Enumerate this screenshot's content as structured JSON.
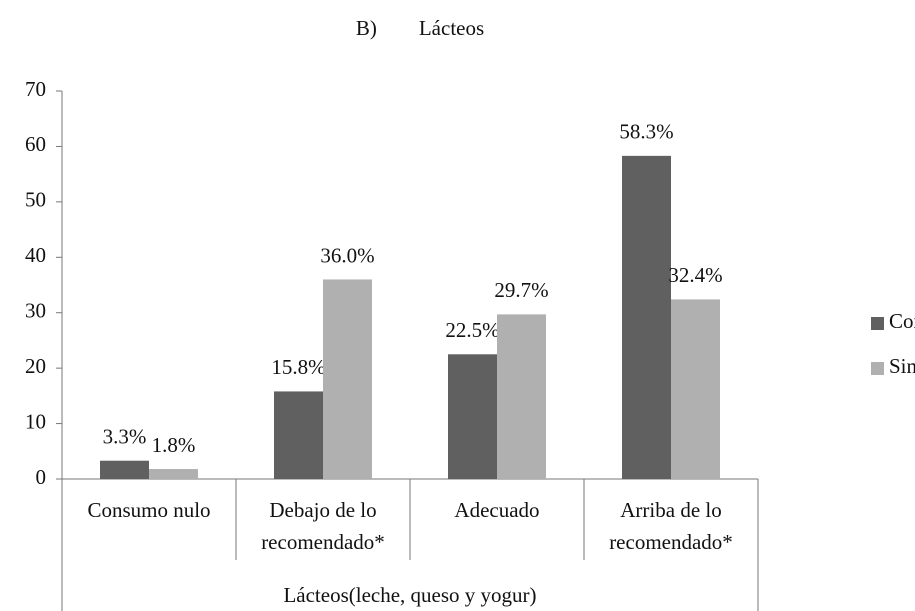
{
  "chart_data": {
    "type": "bar",
    "title": "B)        Lácteos",
    "x_label": "Lácteos(leche, queso y yogur)",
    "categories": [
      [
        "Consumo nulo"
      ],
      [
        "Debajo de lo",
        "recomendado*"
      ],
      [
        "Adecuado"
      ],
      [
        "Arriba de lo",
        "recomendado*"
      ]
    ],
    "series": [
      {
        "name": "Con S.A",
        "color": "#606060",
        "values": [
          3.3,
          15.8,
          22.5,
          58.3
        ],
        "value_labels": [
          "3.3%",
          "15.8%",
          "22.5%",
          "58.3%"
        ]
      },
      {
        "name": "Sin S.A",
        "color": "#b0b0b0",
        "values": [
          1.8,
          36.0,
          29.7,
          32.4
        ],
        "value_labels": [
          "1.8%",
          "36.0%",
          "29.7%",
          "32.4%"
        ]
      }
    ],
    "ylim": [
      0,
      70
    ],
    "yticks": [
      0,
      10,
      20,
      30,
      40,
      50,
      60,
      70
    ],
    "grid": false,
    "legend": "right"
  }
}
